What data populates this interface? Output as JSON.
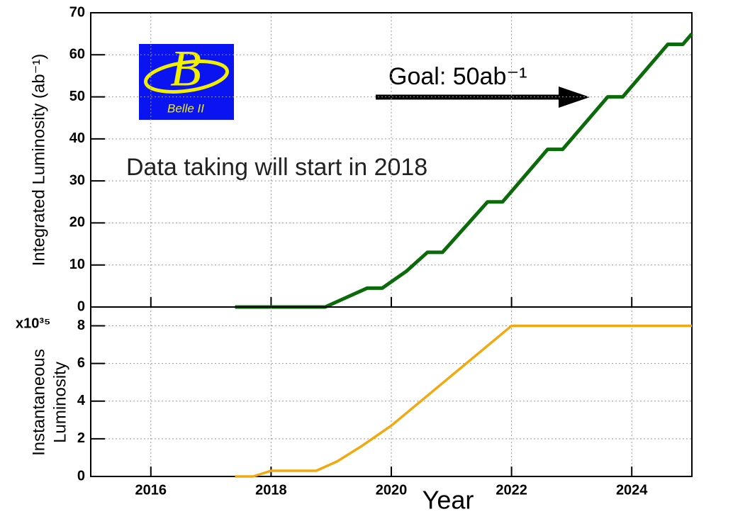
{
  "chart_data": [
    {
      "type": "line",
      "ylabel": "Integrated Luminosity (ab⁻¹)",
      "x": [
        2017.4,
        2018.9,
        2019.6,
        2019.85,
        2020.25,
        2020.6,
        2020.85,
        2021.6,
        2021.85,
        2022.6,
        2022.85,
        2023.6,
        2023.85,
        2024.6,
        2024.85,
        2025
      ],
      "values": [
        0,
        0,
        4.5,
        4.5,
        8.5,
        13,
        13,
        25,
        25,
        37.5,
        37.5,
        50,
        50,
        62.5,
        62.5,
        65
      ],
      "color": "#0b6b0b",
      "xlim": [
        2015,
        2025
      ],
      "xticks": [
        2016,
        2018,
        2020,
        2022,
        2024
      ],
      "show_xtick_labels": false,
      "ylim": [
        0,
        70
      ],
      "yticks": [
        0,
        10,
        20,
        30,
        40,
        50,
        60,
        70
      ],
      "grid": true,
      "annotations": [
        "Goal: 50ab⁻¹",
        "Data taking will start in 2018"
      ],
      "logo_text": [
        "B",
        "Belle II"
      ]
    },
    {
      "type": "line",
      "ylabel": [
        "Instantaneous",
        "Luminosity"
      ],
      "y_multiplier": "x10³⁵",
      "xlabel": "Year",
      "x": [
        2017.4,
        2017.7,
        2018,
        2018.75,
        2019.1,
        2019.5,
        2020,
        2022,
        2025
      ],
      "values": [
        0,
        0,
        0.3,
        0.3,
        0.8,
        1.6,
        2.7,
        8,
        8
      ],
      "color": "#f0aa10",
      "xlim": [
        2015,
        2025
      ],
      "xticks": [
        2016,
        2018,
        2020,
        2022,
        2024
      ],
      "show_xtick_labels": true,
      "ylim": [
        0,
        9
      ],
      "yticks": [
        0,
        2,
        4,
        6,
        8
      ],
      "grid": true
    }
  ]
}
